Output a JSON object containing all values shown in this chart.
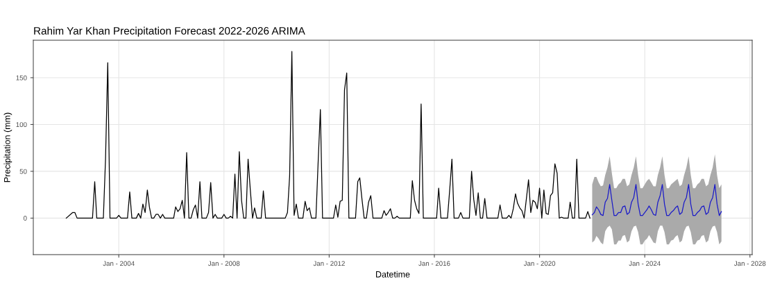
{
  "chart_data": {
    "type": "line",
    "title": "Rahim Yar Khan Precipitation Forecast 2022-2026 ARIMA",
    "xlabel": "Datetime",
    "ylabel": "Precipitation (mm)",
    "xlim": [
      "2000-10",
      "2028-02"
    ],
    "ylim": [
      -39,
      190
    ],
    "xticks": [
      {
        "value": "2004-01",
        "label": "Jan - 2004"
      },
      {
        "value": "2008-01",
        "label": "Jan - 2008"
      },
      {
        "value": "2012-01",
        "label": "Jan - 2012"
      },
      {
        "value": "2016-01",
        "label": "Jan - 2016"
      },
      {
        "value": "2020-01",
        "label": "Jan - 2020"
      },
      {
        "value": "2024-01",
        "label": "Jan - 2024"
      },
      {
        "value": "2028-01",
        "label": "Jan - 2028"
      }
    ],
    "yticks": [
      0,
      50,
      100,
      150
    ],
    "grid": true,
    "series": [
      {
        "color": "#000000",
        "x": [
          "2002-01",
          "2002-04",
          "2002-05",
          "2002-06",
          "2003-01",
          "2003-02",
          "2003-03",
          "2003-06",
          "2003-07",
          "2003-08",
          "2003-09",
          "2003-12",
          "2004-01",
          "2004-02",
          "2004-05",
          "2004-06",
          "2004-07",
          "2004-09",
          "2004-10",
          "2004-11",
          "2004-12",
          "2005-01",
          "2005-02",
          "2005-03",
          "2005-04",
          "2005-05",
          "2005-06",
          "2005-07",
          "2005-08",
          "2005-09",
          "2005-10",
          "2006-02",
          "2006-03",
          "2006-04",
          "2006-05",
          "2006-06",
          "2006-07",
          "2006-08",
          "2006-09",
          "2006-10",
          "2006-11",
          "2006-12",
          "2007-01",
          "2007-02",
          "2007-03",
          "2007-05",
          "2007-06",
          "2007-07",
          "2007-08",
          "2007-09",
          "2007-10",
          "2007-12",
          "2008-01",
          "2008-02",
          "2008-03",
          "2008-04",
          "2008-05",
          "2008-06",
          "2008-07",
          "2008-08",
          "2008-09",
          "2008-10",
          "2008-11",
          "2008-12",
          "2009-01",
          "2009-02",
          "2009-03",
          "2009-04",
          "2009-06",
          "2009-07",
          "2009-08",
          "2010-05",
          "2010-06",
          "2010-07",
          "2010-08",
          "2010-09",
          "2010-10",
          "2010-11",
          "2011-01",
          "2011-02",
          "2011-03",
          "2011-04",
          "2011-05",
          "2011-07",
          "2011-08",
          "2011-09",
          "2011-10",
          "2012-03",
          "2012-04",
          "2012-05",
          "2012-06",
          "2012-07",
          "2012-08",
          "2012-09",
          "2012-10",
          "2013-01",
          "2013-02",
          "2013-03",
          "2013-04",
          "2013-05",
          "2013-06",
          "2013-07",
          "2013-08",
          "2013-09",
          "2014-01",
          "2014-02",
          "2014-03",
          "2014-04",
          "2014-05",
          "2014-06",
          "2014-07",
          "2014-08",
          "2014-09",
          "2015-02",
          "2015-03",
          "2015-04",
          "2015-05",
          "2015-06",
          "2015-07",
          "2015-08",
          "2016-02",
          "2016-03",
          "2016-04",
          "2016-07",
          "2016-08",
          "2016-09",
          "2016-10",
          "2016-12",
          "2017-01",
          "2017-02",
          "2017-05",
          "2017-06",
          "2017-07",
          "2017-08",
          "2017-09",
          "2017-10",
          "2017-11",
          "2017-12",
          "2018-01",
          "2018-06",
          "2018-07",
          "2018-08",
          "2018-10",
          "2018-11",
          "2018-12",
          "2019-01",
          "2019-02",
          "2019-03",
          "2019-04",
          "2019-05",
          "2019-06",
          "2019-07",
          "2019-08",
          "2019-09",
          "2019-10",
          "2019-11",
          "2019-12",
          "2020-01",
          "2020-02",
          "2020-03",
          "2020-04",
          "2020-05",
          "2020-06",
          "2020-07",
          "2020-08",
          "2020-09",
          "2020-10",
          "2020-11",
          "2020-12",
          "2021-02",
          "2021-03",
          "2021-04",
          "2021-05",
          "2021-06",
          "2021-07",
          "2021-10",
          "2021-11",
          "2021-12"
        ],
        "values": [
          0,
          6,
          6,
          0,
          0,
          39,
          0,
          0,
          63,
          166,
          0,
          0,
          3,
          0,
          0,
          28,
          0,
          0,
          5,
          0,
          15,
          6,
          30,
          12,
          0,
          0,
          4,
          4,
          0,
          4,
          0,
          0,
          12,
          7,
          10,
          19,
          0,
          70,
          0,
          0,
          9,
          14,
          0,
          39,
          0,
          0,
          6,
          38,
          0,
          4,
          0,
          0,
          4,
          0,
          0,
          2,
          0,
          47,
          0,
          71,
          19,
          0,
          0,
          63,
          30,
          0,
          11,
          0,
          0,
          29,
          0,
          0,
          6,
          45,
          178,
          3,
          15,
          0,
          0,
          18,
          8,
          11,
          0,
          0,
          60,
          116,
          0,
          0,
          14,
          1,
          18,
          19,
          137,
          155,
          0,
          0,
          39,
          43,
          20,
          0,
          0,
          17,
          24,
          0,
          0,
          8,
          3,
          6,
          10,
          0,
          0,
          2,
          0,
          0,
          40,
          19,
          10,
          5,
          122,
          0,
          0,
          32,
          0,
          0,
          30,
          63,
          0,
          0,
          6,
          0,
          0,
          50,
          20,
          3,
          27,
          0,
          0,
          21,
          0,
          0,
          14,
          0,
          0,
          3,
          0,
          10,
          26,
          16,
          11,
          8,
          0,
          20,
          41,
          6,
          19,
          17,
          10,
          32,
          0,
          30,
          5,
          4,
          24,
          27,
          58,
          48,
          0,
          1,
          0,
          0,
          17,
          0,
          0,
          63,
          0,
          0,
          7,
          0
        ]
      },
      {
        "color": "#1a1ac8",
        "x": [
          "2022-01",
          "2022-02",
          "2022-03",
          "2022-04",
          "2022-05",
          "2022-06",
          "2022-07",
          "2022-08",
          "2022-09",
          "2022-10",
          "2022-11",
          "2022-12",
          "2023-01",
          "2023-02",
          "2023-03",
          "2023-04",
          "2023-05",
          "2023-06",
          "2023-07",
          "2023-08",
          "2023-09",
          "2023-10",
          "2023-11",
          "2023-12",
          "2024-01",
          "2024-02",
          "2024-03",
          "2024-04",
          "2024-05",
          "2024-06",
          "2024-07",
          "2024-08",
          "2024-09",
          "2024-10",
          "2024-11",
          "2024-12",
          "2025-01",
          "2025-02",
          "2025-03",
          "2025-04",
          "2025-05",
          "2025-06",
          "2025-07",
          "2025-08",
          "2025-09",
          "2025-10",
          "2025-11",
          "2025-12",
          "2026-01",
          "2026-02",
          "2026-03",
          "2026-04",
          "2026-05",
          "2026-06",
          "2026-07",
          "2026-08",
          "2026-09",
          "2026-10",
          "2026-11",
          "2026-12"
        ],
        "values": [
          3.5,
          6,
          12,
          8.8,
          3.9,
          2.8,
          17,
          21,
          36,
          19,
          2.8,
          2.8,
          6,
          6,
          12,
          13,
          4,
          6,
          17,
          22,
          36,
          15,
          2.8,
          2.8,
          6,
          9,
          13,
          9,
          4,
          3,
          17,
          24,
          36,
          15,
          2.8,
          2.8,
          6,
          8,
          11,
          13,
          4,
          6,
          17,
          22,
          36,
          15,
          2.8,
          2.8,
          6,
          8,
          12,
          13,
          4,
          6,
          17,
          22,
          36,
          15,
          2.8,
          7
        ],
        "upper": [
          36,
          44,
          44,
          38,
          34,
          35,
          46,
          54,
          66,
          48,
          32,
          32,
          36,
          38,
          42,
          42,
          34,
          36,
          46,
          54,
          66,
          46,
          32,
          32,
          36,
          40,
          42,
          38,
          34,
          34,
          46,
          54,
          66,
          46,
          32,
          32,
          36,
          38,
          40,
          42,
          34,
          36,
          46,
          54,
          66,
          46,
          32,
          32,
          36,
          38,
          42,
          42,
          34,
          36,
          46,
          54,
          68,
          46,
          32,
          36
        ],
        "lower": [
          -26,
          -24,
          -19,
          -22,
          -26,
          -28,
          -14,
          -10,
          -8,
          -12,
          -28,
          -28,
          -24,
          -24,
          -19,
          -18,
          -26,
          -24,
          -14,
          -9,
          -8,
          -15,
          -28,
          -28,
          -24,
          -22,
          -18,
          -22,
          -26,
          -27,
          -14,
          -8,
          -8,
          -15,
          -28,
          -28,
          -24,
          -23,
          -20,
          -18,
          -26,
          -24,
          -14,
          -9,
          -8,
          -15,
          -28,
          -28,
          -24,
          -23,
          -19,
          -18,
          -26,
          -24,
          -14,
          -9,
          -8,
          -15,
          -28,
          -25
        ]
      }
    ]
  }
}
